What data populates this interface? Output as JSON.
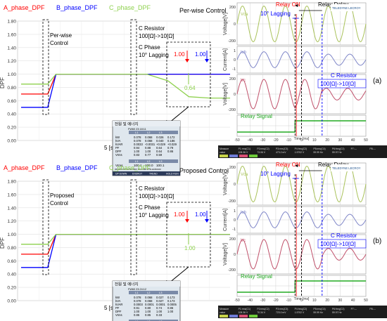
{
  "colors": {
    "phase_a": "#ff0000",
    "phase_b": "#0000ff",
    "phase_c": "#8fd14f",
    "scope_bg": "#ffffff",
    "scope_grid": "#c8c8c8",
    "voltage_trace": "#a9c25a",
    "current_trace": "#7f86c8",
    "vc_trace": "#c0506a",
    "relay_trace": "#22aa22",
    "annotation_red": "#ff0000",
    "annotation_blue": "#0000ff",
    "annotation_black": "#000000"
  },
  "panels": [
    {
      "id": "a",
      "label": "(a)",
      "left": {
        "legend": [
          {
            "text": "A_phase_DPF",
            "color": "#ff0000"
          },
          {
            "text": "B_phase_DPF",
            "color": "#0000ff"
          },
          {
            "text": "C_phase_DPF",
            "color": "#8fd14f"
          }
        ],
        "title": "Per-wise Control",
        "ylabel": "DPF",
        "yticks": [
          "1.80",
          "1.60",
          "1.40",
          "1.20",
          "1.00",
          "0.80",
          "0.60",
          "0.40",
          "0.20",
          "0.00"
        ],
        "xlabel": "5 [s/Div]",
        "annotations": {
          "control": [
            "Per-wise",
            "Control"
          ],
          "resistor": [
            "C Resistor",
            "100[Ω]->10[Ω]"
          ],
          "phase": [
            "C Phase",
            "10° Lagging"
          ],
          "zoom_a": "1.00",
          "zoom_b": "1.00",
          "zoom_c": "0.64"
        },
        "meter": {
          "title": "전원 및 에너지",
          "header": "FW60    23:18:11",
          "cols": [
            "L1",
            "L2",
            "L3"
          ],
          "rows": [
            [
              "kW",
              "0.078",
              "0.068",
              "0.026",
              "0.172"
            ],
            [
              "kVA",
              "0.078",
              "0.068",
              "0.040",
              "0.186"
            ],
            [
              "kVAR",
              "0.0033",
              "-0.0031",
              "+0.029",
              "+0.029"
            ],
            [
              "PF",
              "0.94",
              "0.88",
              "0.64",
              "0.79"
            ],
            [
              "DPF",
              "1.00",
              "1.00",
              "0.64",
              "0.86"
            ],
            [
              "Vrms",
              "0.83",
              "0.77",
              "0.59",
              ""
            ]
          ],
          "footer_cols": [
            "L1",
            "L2",
            "L3"
          ],
          "footer_row": [
            "Vrms",
            "100.1",
            "100.0",
            "100.1"
          ],
          "status": "05/09/03 09:20:52   230V 60Hz 3Ø WYE   EN50160",
          "buttons": [
            "UP DOWN",
            "ENERGY",
            "TREND",
            "HOLD RUN"
          ]
        }
      },
      "right": {
        "top_labels": {
          "relay_on": "Relay ON",
          "relay_delay": "Relay Delay",
          "lagging": "10° Lagging",
          "vca": "Vca",
          "icb": "Icb",
          "vc": "Vc"
        },
        "resistor": [
          "C Resistor",
          "100[Ω]->10[Ω]"
        ],
        "relay_signal": "Relay Signal",
        "brand": "TELEDYNE LECROY",
        "xticks": [
          "-50",
          "-40",
          "-30",
          "-20",
          "-10",
          "0",
          "10",
          "20",
          "30",
          "40",
          "50"
        ],
        "xlabel": "Time [ms]",
        "subplots": [
          {
            "ylabel": "Voltage[V]",
            "yticks": [
              "200",
              "0",
              "-200"
            ]
          },
          {
            "ylabel": "Current[A]",
            "yticks": [
              "1",
              "0",
              "-1"
            ]
          },
          {
            "ylabel": "Voltage[V]",
            "yticks": [
              "200",
              "0",
              "-200"
            ]
          },
          {
            "ylabel": "",
            "yticks": []
          }
        ],
        "measure_bar": [
          "Measure",
          "P1:rms(C1)",
          "P2:rms(C2)",
          "P3:rms(C3)",
          "P4:freq(C2)",
          "P5:rms(C4)",
          "P6:freq(C2)",
          "P7:---",
          "P8:---"
        ],
        "measure_values": [
          "value",
          "108.36 V",
          "73.06 V",
          "473.2 mV",
          "1.5702 V",
          "59.99 Hz",
          "59.97 Hz",
          "",
          ""
        ]
      }
    },
    {
      "id": "b",
      "label": "(b)",
      "left": {
        "legend": [
          {
            "text": "A_phase_DPF",
            "color": "#ff0000"
          },
          {
            "text": "B_phase_DPF",
            "color": "#0000ff"
          },
          {
            "text": "C_phase_DPF",
            "color": "#8fd14f"
          }
        ],
        "title": "Proposed Control",
        "ylabel": "DPF",
        "yticks": [
          "1.80",
          "1.60",
          "1.40",
          "1.20",
          "1.00",
          "0.80",
          "0.60",
          "0.40",
          "0.20",
          "0.00"
        ],
        "xlabel": "5 [s/Div]",
        "annotations": {
          "control": [
            "Proposed",
            "Control"
          ],
          "resistor": [
            "C Resistor",
            "100[Ω]->10[Ω]"
          ],
          "phase": [
            "C Phase",
            "10° Lagging"
          ],
          "zoom_a": "1.00",
          "zoom_b": "1.00",
          "zoom_c": "1.00"
        },
        "meter": {
          "title": "전원 및 에너지",
          "header": "FW60    23:24:12",
          "cols": [
            "L1",
            "L2",
            "L3"
          ],
          "rows": [
            [
              "kW",
              "0.078",
              "0.068",
              "0.027",
              "0.173"
            ],
            [
              "kVA",
              "0.078",
              "0.068",
              "0.027",
              "0.173"
            ],
            [
              "kVAR",
              "0.0003",
              "0.0001",
              "0.0001",
              "0.0005"
            ],
            [
              "PF",
              "0.91",
              "0.80",
              "0.74",
              "0.86"
            ],
            [
              "DPF",
              "1.00",
              "1.00",
              "1.00",
              "1.00"
            ],
            [
              "Vrms",
              "0.85",
              "0.85",
              "0.33",
              ""
            ]
          ],
          "footer_cols": [
            "L1",
            "L2",
            "L3"
          ],
          "footer_row": [
            "Vrms",
            "100.1",
            "100.0",
            "100.1"
          ],
          "status": "05/09/03 09:24:26   230V 60Hz 3Ø WYE   EN50160",
          "buttons": [
            "UP DOWN",
            "ENERGY",
            "TREND",
            "HOLD RUN"
          ]
        }
      },
      "right": {
        "top_labels": {
          "relay_on": "Relay ON",
          "relay_delay": "Relay Delay",
          "lagging": "10° Lagging",
          "vca": "Vca",
          "icb": "Icb",
          "vc": "Vc"
        },
        "resistor": [
          "C Resistor",
          "100[Ω]->10[Ω]"
        ],
        "relay_signal": "Relay Signal",
        "brand": "TELEDYNE LECROY",
        "xticks": [
          "-50",
          "-40",
          "-30",
          "-20",
          "-10",
          "0",
          "10",
          "20",
          "30",
          "40",
          "50"
        ],
        "xlabel": "Time [ms]",
        "subplots": [
          {
            "ylabel": "Voltage[V]",
            "yticks": [
              "200",
              "0",
              "-200"
            ]
          },
          {
            "ylabel": "Current[A]",
            "yticks": [
              "1",
              "0",
              "-1"
            ]
          },
          {
            "ylabel": "Voltage[V]",
            "yticks": [
              "200",
              "0",
              "-200"
            ]
          },
          {
            "ylabel": "",
            "yticks": []
          }
        ],
        "measure_bar": [
          "Measure",
          "P1:rms(C1)",
          "P2:rms(C2)",
          "P3:rms(C3)",
          "P4:freq(C2)",
          "P5:rms(C4)",
          "P6:freq(C2)",
          "P7:---",
          "P8:---"
        ],
        "measure_values": [
          "value",
          "108.36 V",
          "70.34 V",
          "723.0 mV",
          "1.5702 V",
          "59.99 Hz",
          "59.97 Hz",
          "",
          ""
        ]
      }
    }
  ],
  "chart_data": [
    {
      "type": "line",
      "title": "Per-wise Control",
      "ylabel": "DPF",
      "xlabel": "5 [s/Div]",
      "ylim": [
        0,
        1.8
      ],
      "x": [
        0,
        1,
        2,
        3,
        4,
        5,
        6,
        7,
        8,
        9,
        10
      ],
      "series": [
        {
          "name": "A_phase_DPF",
          "values": [
            0.7,
            0.7,
            1.0,
            1.0,
            1.0,
            1.0,
            1.0,
            1.0,
            1.0,
            1.0,
            1.0
          ]
        },
        {
          "name": "B_phase_DPF",
          "values": [
            0.5,
            0.5,
            1.0,
            1.0,
            1.0,
            1.0,
            1.0,
            1.0,
            1.0,
            1.0,
            1.0
          ]
        },
        {
          "name": "C_phase_DPF",
          "values": [
            0.85,
            0.85,
            1.0,
            1.0,
            1.0,
            1.0,
            1.0,
            0.9,
            0.66,
            0.64,
            0.64
          ]
        }
      ]
    },
    {
      "type": "line",
      "title": "Proposed Control",
      "ylabel": "DPF",
      "xlabel": "5 [s/Div]",
      "ylim": [
        0,
        1.8
      ],
      "x": [
        0,
        1,
        2,
        3,
        4,
        5,
        6,
        7,
        8,
        9,
        10
      ],
      "series": [
        {
          "name": "A_phase_DPF",
          "values": [
            0.7,
            0.7,
            1.0,
            1.0,
            1.0,
            1.0,
            1.0,
            1.0,
            1.0,
            1.0,
            1.0
          ]
        },
        {
          "name": "B_phase_DPF",
          "values": [
            0.5,
            0.5,
            1.0,
            1.0,
            1.0,
            1.0,
            1.0,
            1.0,
            1.0,
            1.0,
            1.0
          ]
        },
        {
          "name": "C_phase_DPF",
          "values": [
            0.85,
            0.85,
            1.0,
            1.0,
            1.0,
            1.0,
            1.0,
            1.0,
            1.0,
            1.0,
            1.0
          ]
        }
      ]
    }
  ]
}
